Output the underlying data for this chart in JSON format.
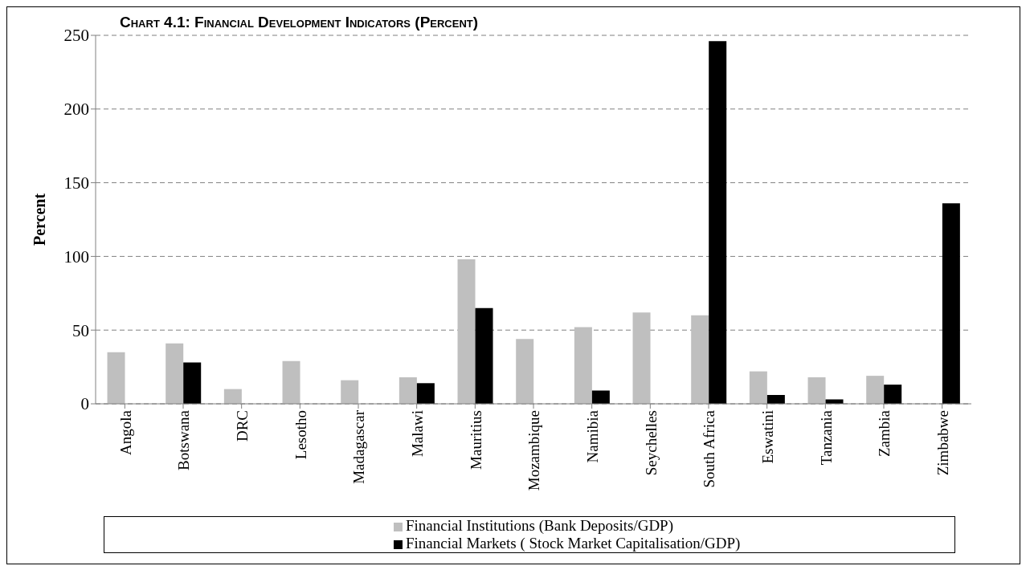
{
  "chart_data": {
    "type": "bar",
    "title": "Chart 4.1: Financial Development Indicators (Percent)",
    "ylabel": "Percent",
    "categories": [
      "Angola",
      "Botswana",
      "DRC",
      "Lesotho",
      "Madagascar",
      "Malawi",
      "Mauritius",
      "Mozambique",
      "Namibia",
      "Seychelles",
      "South Africa",
      "Eswatini",
      "Tanzania",
      "Zambia",
      "Zimbabwe"
    ],
    "series": [
      {
        "name": "Financial Institutions (Bank Deposits/GDP)",
        "color": "#bfbfbf",
        "values": [
          35,
          41,
          10,
          29,
          16,
          18,
          98,
          44,
          52,
          62,
          60,
          22,
          18,
          19,
          null
        ]
      },
      {
        "name": "Financial Markets ( Stock Market Capitalisation/GDP)",
        "color": "#000000",
        "values": [
          null,
          28,
          null,
          null,
          null,
          14,
          65,
          null,
          9,
          null,
          246,
          6,
          3,
          13,
          136
        ]
      }
    ],
    "ylim": [
      0,
      250
    ],
    "yticks": [
      0,
      50,
      100,
      150,
      200,
      250
    ],
    "grid": "y",
    "legend": "bottom"
  }
}
